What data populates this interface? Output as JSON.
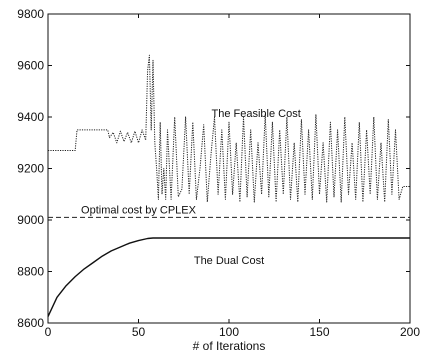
{
  "chart_data": {
    "type": "line",
    "title": "",
    "xlabel": "# of Iterations",
    "ylabel": "",
    "xlim": [
      0,
      200
    ],
    "ylim": [
      8600,
      9800
    ],
    "grid": false,
    "xticks": [
      0,
      50,
      100,
      150,
      200
    ],
    "yticks": [
      8600,
      8800,
      9000,
      9200,
      9400,
      9600,
      9800
    ],
    "annotations": [
      {
        "id": "feasible",
        "text": "The Feasible Cost",
        "x": 115,
        "y": 9400
      },
      {
        "id": "optimal",
        "text": "Optimal cost by CPLEX",
        "x": 50,
        "y": 9025
      },
      {
        "id": "dual",
        "text": "The Dual Cost",
        "x": 100,
        "y": 8830
      }
    ],
    "series": [
      {
        "id": "feasible",
        "style": "dotted",
        "color": "#222222",
        "x": [
          0,
          15,
          16,
          33,
          34,
          36,
          38,
          40,
          42,
          44,
          46,
          48,
          50,
          52,
          54,
          55,
          56,
          57,
          58,
          59,
          60,
          61,
          62,
          63,
          64,
          65,
          66,
          68,
          70,
          72,
          74,
          76,
          78,
          80,
          82,
          84,
          86,
          88,
          90,
          92,
          94,
          96,
          98,
          100,
          102,
          104,
          106,
          108,
          110,
          112,
          114,
          116,
          118,
          120,
          122,
          124,
          126,
          128,
          130,
          132,
          134,
          136,
          138,
          140,
          142,
          144,
          146,
          148,
          150,
          152,
          154,
          156,
          158,
          160,
          162,
          164,
          166,
          168,
          170,
          172,
          174,
          176,
          178,
          180,
          182,
          184,
          186,
          188,
          190,
          192,
          194,
          196,
          198,
          200
        ],
        "y": [
          9270,
          9270,
          9350,
          9350,
          9320,
          9340,
          9300,
          9345,
          9305,
          9340,
          9300,
          9345,
          9300,
          9350,
          9310,
          9580,
          9640,
          9350,
          9620,
          9300,
          9200,
          9080,
          9380,
          9100,
          9200,
          9080,
          9350,
          9080,
          9400,
          9090,
          9120,
          9400,
          9100,
          9380,
          9080,
          9200,
          9370,
          9070,
          9250,
          9400,
          9100,
          9350,
          9080,
          9380,
          9100,
          9300,
          9070,
          9400,
          9090,
          9350,
          9070,
          9300,
          9100,
          9410,
          9090,
          9380,
          9070,
          9350,
          9100,
          9400,
          9080,
          9300,
          9070,
          9390,
          9100,
          9350,
          9080,
          9410,
          9100,
          9300,
          9070,
          9380,
          9090,
          9350,
          9070,
          9400,
          9100,
          9300,
          9080,
          9380,
          9070,
          9350,
          9100,
          9400,
          9080,
          9300,
          9070,
          9390,
          9100,
          9350,
          9080,
          9130,
          9130,
          9130
        ]
      },
      {
        "id": "optimal",
        "style": "dashed",
        "color": "#222222",
        "x": [
          0,
          200
        ],
        "y": [
          9010,
          9010
        ]
      },
      {
        "id": "dual",
        "style": "solid",
        "color": "#111111",
        "x": [
          0,
          5,
          10,
          15,
          20,
          25,
          30,
          35,
          40,
          45,
          50,
          55,
          58,
          60,
          80,
          100,
          120,
          140,
          160,
          180,
          200
        ],
        "y": [
          8625,
          8700,
          8745,
          8780,
          8810,
          8835,
          8860,
          8880,
          8895,
          8910,
          8920,
          8928,
          8930,
          8930,
          8930,
          8930,
          8930,
          8930,
          8930,
          8930,
          8930
        ]
      }
    ]
  }
}
